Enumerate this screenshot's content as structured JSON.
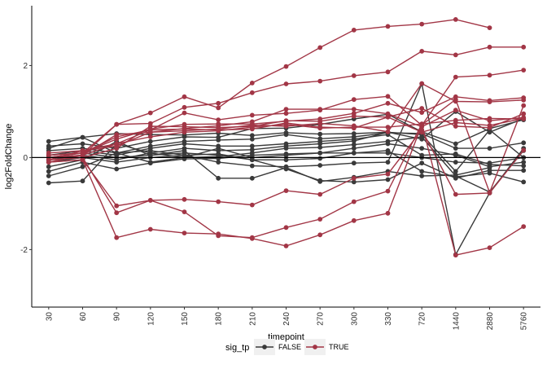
{
  "chart_data": {
    "type": "line",
    "xlabel": "timepoint",
    "ylabel": "log2FoldChange",
    "categories": [
      "30",
      "60",
      "90",
      "120",
      "150",
      "180",
      "210",
      "240",
      "270",
      "300",
      "330",
      "720",
      "1440",
      "2880",
      "5760"
    ],
    "ylim": [
      -3.25,
      3.3
    ],
    "yticks": [
      -2,
      0,
      2
    ],
    "hline": 0,
    "grid": false,
    "legend": {
      "title": "sig_tp",
      "placement": "bottom",
      "entries": [
        {
          "label": "FALSE",
          "color": "#3a3a3a"
        },
        {
          "label": "TRUE",
          "color": "#a23646"
        }
      ]
    },
    "series": [
      {
        "group": "TRUE",
        "values": [
          -0.1,
          0.05,
          0.72,
          0.97,
          1.32,
          1.08,
          1.62,
          1.98,
          2.39,
          2.77,
          2.85,
          2.9,
          3.0,
          2.82,
          null
        ]
      },
      {
        "group": "TRUE",
        "values": [
          0.0,
          0.1,
          0.72,
          0.74,
          1.09,
          1.18,
          1.41,
          1.6,
          1.66,
          1.78,
          1.86,
          2.31,
          2.23,
          2.4,
          2.4
        ]
      },
      {
        "group": "TRUE",
        "values": [
          -0.05,
          0.15,
          0.3,
          0.6,
          0.97,
          0.82,
          0.92,
          0.96,
          1.03,
          1.26,
          1.33,
          0.7,
          1.75,
          1.79,
          1.9
        ]
      },
      {
        "group": "TRUE",
        "values": [
          0.05,
          0.1,
          0.4,
          0.62,
          0.72,
          0.73,
          0.73,
          0.79,
          0.84,
          0.96,
          1.18,
          0.98,
          1.32,
          1.24,
          1.3
        ]
      },
      {
        "group": "TRUE",
        "values": [
          0.1,
          0.15,
          0.25,
          0.55,
          0.63,
          0.69,
          0.78,
          1.05,
          1.05,
          1.05,
          0.95,
          0.67,
          1.03,
          0.8,
          0.87
        ]
      },
      {
        "group": "TRUE",
        "values": [
          -0.05,
          0.0,
          0.2,
          0.68,
          0.67,
          0.65,
          0.68,
          0.8,
          0.79,
          0.9,
          0.88,
          0.55,
          0.76,
          0.7,
          0.85
        ]
      },
      {
        "group": "TRUE",
        "values": [
          0.0,
          0.05,
          0.3,
          0.45,
          0.55,
          0.58,
          0.66,
          0.72,
          0.64,
          0.66,
          0.66,
          0.73,
          0.81,
          0.85,
          0.84
        ]
      },
      {
        "group": "TRUE",
        "values": [
          0.05,
          0.1,
          0.45,
          0.6,
          0.62,
          0.6,
          0.62,
          0.75,
          0.66,
          0.64,
          0.88,
          1.07,
          0.68,
          0.65,
          0.95
        ]
      },
      {
        "group": "TRUE",
        "values": [
          0.0,
          0.05,
          0.5,
          0.55,
          0.58,
          0.62,
          0.71,
          0.68,
          0.74,
          0.69,
          0.56,
          1.61,
          1.22,
          1.21,
          1.25
        ]
      },
      {
        "group": "TRUE",
        "values": [
          -0.1,
          -0.05,
          -1.05,
          -0.93,
          -0.91,
          -0.96,
          -1.03,
          -0.72,
          -0.8,
          -0.45,
          -0.36,
          0.6,
          -0.8,
          -0.77,
          0.16
        ]
      },
      {
        "group": "TRUE",
        "values": [
          -0.05,
          0.0,
          -1.2,
          -0.93,
          -1.18,
          -1.7,
          -1.74,
          -1.52,
          -1.34,
          -0.96,
          -0.73,
          0.73,
          -2.12,
          -1.96,
          -1.5
        ]
      },
      {
        "group": "TRUE",
        "values": [
          -0.1,
          -0.05,
          -1.74,
          -1.56,
          -1.64,
          -1.66,
          -1.76,
          -1.92,
          -1.68,
          -1.37,
          -1.21,
          0.71,
          1.26,
          -0.76,
          1.13
        ]
      },
      {
        "group": "FALSE",
        "values": [
          0.35,
          0.44,
          0.52,
          0.5,
          0.49,
          0.53,
          0.48,
          0.54,
          0.51,
          0.52,
          0.55,
          0.4,
          1.0,
          0.55,
          0.85
        ]
      },
      {
        "group": "FALSE",
        "values": [
          0.25,
          0.3,
          0.2,
          0.35,
          0.45,
          0.44,
          0.63,
          0.64,
          0.72,
          0.84,
          0.94,
          0.56,
          0.3,
          0.63,
          0.82
        ]
      },
      {
        "group": "FALSE",
        "values": [
          0.15,
          0.2,
          0.1,
          0.25,
          0.35,
          0.38,
          0.4,
          0.5,
          0.41,
          0.45,
          0.54,
          0.52,
          0.2,
          0.2,
          0.32
        ]
      },
      {
        "group": "FALSE",
        "values": [
          0.05,
          0.15,
          0.05,
          0.2,
          0.3,
          0.25,
          0.25,
          0.3,
          0.35,
          0.4,
          0.5,
          0.05,
          0.08,
          -0.15,
          -0.18
        ]
      },
      {
        "group": "FALSE",
        "values": [
          -0.05,
          0.05,
          -0.05,
          0.1,
          0.2,
          0.15,
          0.17,
          0.25,
          0.3,
          0.36,
          0.55,
          0.5,
          -0.3,
          0.6,
          0.0
        ]
      },
      {
        "group": "FALSE",
        "values": [
          0.0,
          0.1,
          0.0,
          0.05,
          0.1,
          0.05,
          -0.05,
          -0.05,
          -0.02,
          0.1,
          0.15,
          -0.3,
          -0.42,
          -0.34,
          -0.53
        ]
      },
      {
        "group": "FALSE",
        "values": [
          -0.1,
          0.0,
          -0.1,
          0.0,
          0.05,
          -0.1,
          -0.18,
          -0.2,
          -0.17,
          -0.12,
          -0.1,
          1.6,
          -2.11,
          -0.77,
          0.2
        ]
      },
      {
        "group": "FALSE",
        "values": [
          -0.2,
          -0.05,
          0.35,
          0.05,
          0.15,
          -0.45,
          -0.45,
          -0.22,
          -0.52,
          -0.43,
          -0.3,
          -0.4,
          -0.38,
          -0.22,
          null
        ]
      },
      {
        "group": "FALSE",
        "values": [
          -0.3,
          -0.1,
          -0.25,
          -0.12,
          -0.03,
          -0.02,
          0.05,
          0.08,
          0.1,
          0.1,
          0.1,
          0.0,
          -0.1,
          -0.12,
          0.0
        ]
      },
      {
        "group": "FALSE",
        "values": [
          -0.4,
          -0.2,
          0.1,
          0.15,
          0.05,
          0.08,
          -0.05,
          -0.25,
          -0.5,
          -0.53,
          -0.48,
          -0.12,
          -0.45,
          -0.28,
          -0.28
        ]
      },
      {
        "group": "FALSE",
        "values": [
          -0.55,
          -0.51,
          0.3,
          0.1,
          0.0,
          0.02,
          0.1,
          0.2,
          0.22,
          0.28,
          0.35,
          0.45,
          -0.4,
          -0.75,
          0.15
        ]
      },
      {
        "group": "FALSE",
        "values": [
          0.2,
          0.44,
          0.1,
          -0.1,
          0.0,
          0.2,
          0.0,
          0.05,
          0.1,
          0.2,
          0.3,
          0.2,
          0.05,
          -0.2,
          -0.1
        ]
      }
    ]
  }
}
